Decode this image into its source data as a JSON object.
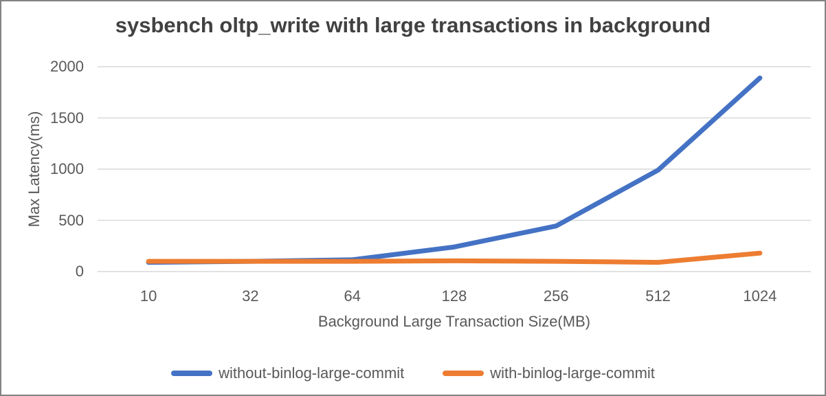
{
  "chart_data": {
    "type": "line",
    "title": "sysbench oltp_write with large transactions in background",
    "xlabel": "Background Large Transaction Size(MB)",
    "ylabel": "Max Latency(ms)",
    "categories": [
      "10",
      "32",
      "64",
      "128",
      "256",
      "512",
      "1024"
    ],
    "series": [
      {
        "name": "without-binlog-large-commit",
        "color": "#4472C4",
        "values": [
          90,
          100,
          115,
          240,
          445,
          990,
          1890
        ]
      },
      {
        "name": "with-binlog-large-commit",
        "color": "#ED7D31",
        "values": [
          100,
          100,
          100,
          105,
          100,
          90,
          180
        ]
      }
    ],
    "ylim": [
      0,
      2000
    ],
    "y_ticks": [
      0,
      500,
      1000,
      1500,
      2000
    ],
    "grid": "horizontal-only",
    "legend_position": "bottom-center"
  },
  "colors": {
    "series_blue": "#4472C4",
    "series_orange": "#ED7D31",
    "gridline": "#D9D9D9",
    "axis_text": "#595959",
    "title_text": "#414141",
    "frame_border": "#828282"
  }
}
